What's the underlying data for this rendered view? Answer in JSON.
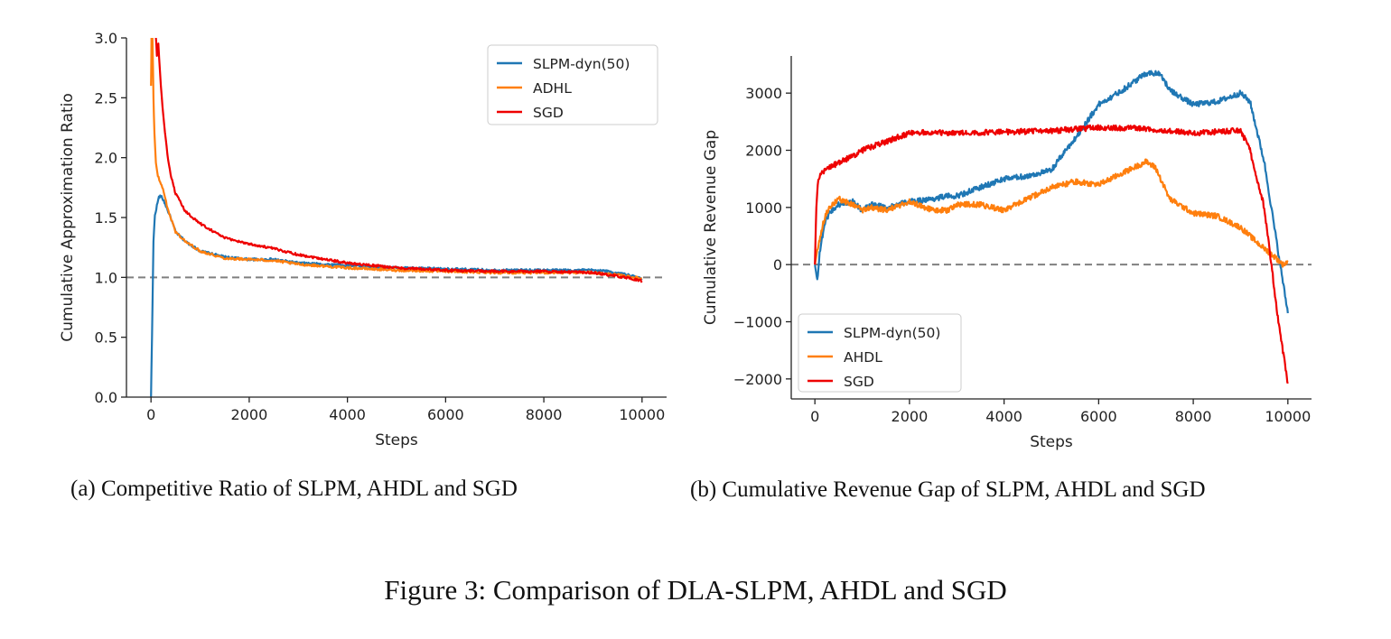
{
  "chart_data": [
    {
      "type": "line",
      "title": "",
      "xlabel": "Steps",
      "ylabel": "Cumulative Approximation Ratio",
      "xlim": [
        -500,
        10500
      ],
      "ylim": [
        0,
        3
      ],
      "xticks": [
        0,
        2000,
        4000,
        6000,
        8000,
        10000
      ],
      "yticks": [
        0.0,
        0.5,
        1.0,
        1.5,
        2.0,
        2.5,
        3.0
      ],
      "ytick_labels": [
        "0.0",
        "0.5",
        "1.0",
        "1.5",
        "2.0",
        "2.5",
        "3.0"
      ],
      "reference_line": 1.0,
      "legend_position": "upper-right",
      "series": [
        {
          "name": "SLPM-dyn(50)",
          "color": "#1f77b4",
          "x": [
            0,
            20,
            50,
            80,
            120,
            160,
            200,
            260,
            320,
            400,
            500,
            700,
            1000,
            1500,
            2000,
            2500,
            3000,
            4000,
            5000,
            6000,
            7000,
            8000,
            9000,
            9300,
            9600,
            9800,
            10000
          ],
          "y": [
            0.0,
            0.5,
            1.3,
            1.52,
            1.6,
            1.67,
            1.68,
            1.64,
            1.58,
            1.5,
            1.38,
            1.3,
            1.22,
            1.17,
            1.15,
            1.15,
            1.12,
            1.1,
            1.08,
            1.07,
            1.06,
            1.06,
            1.06,
            1.05,
            1.03,
            1.01,
            0.99
          ]
        },
        {
          "name": "ADHL",
          "color": "#ff7f0e",
          "x": [
            0,
            10,
            20,
            30,
            50,
            70,
            100,
            140,
            200,
            260,
            320,
            400,
            500,
            700,
            1000,
            1500,
            2000,
            2500,
            3000,
            4000,
            5000,
            6000,
            7000,
            8000,
            9000,
            9500,
            10000
          ],
          "y": [
            2.6,
            3.0,
            2.7,
            3.0,
            2.5,
            2.2,
            1.95,
            1.85,
            1.78,
            1.72,
            1.6,
            1.5,
            1.38,
            1.3,
            1.22,
            1.16,
            1.15,
            1.14,
            1.11,
            1.08,
            1.06,
            1.05,
            1.04,
            1.04,
            1.04,
            1.02,
            0.99
          ]
        },
        {
          "name": "SGD",
          "color": "#ee0000",
          "x": [
            100,
            120,
            150,
            200,
            250,
            300,
            350,
            400,
            500,
            700,
            1000,
            1500,
            2000,
            2500,
            3000,
            4000,
            5000,
            6000,
            7000,
            8000,
            9000,
            9500,
            10000
          ],
          "y": [
            3.0,
            2.85,
            2.95,
            2.6,
            2.35,
            2.15,
            1.98,
            1.85,
            1.7,
            1.55,
            1.45,
            1.33,
            1.28,
            1.24,
            1.19,
            1.12,
            1.08,
            1.06,
            1.05,
            1.05,
            1.04,
            1.01,
            0.97
          ]
        }
      ]
    },
    {
      "type": "line",
      "title": "",
      "xlabel": "Steps",
      "ylabel": "Cumulative Revenue Gap",
      "xlim": [
        -500,
        10500
      ],
      "ylim": [
        -2350,
        3650
      ],
      "xticks": [
        0,
        2000,
        4000,
        6000,
        8000,
        10000
      ],
      "yticks": [
        -2000,
        -1000,
        0,
        1000,
        2000,
        3000
      ],
      "ytick_labels": [
        "−2000",
        "−1000",
        "0",
        "1000",
        "2000",
        "3000"
      ],
      "reference_line": 0,
      "legend_position": "lower-left",
      "series": [
        {
          "name": "SLPM-dyn(50)",
          "color": "#1f77b4",
          "x": [
            0,
            50,
            100,
            200,
            300,
            500,
            800,
            1000,
            1200,
            1500,
            2000,
            2500,
            2800,
            3000,
            3500,
            4000,
            4500,
            5000,
            5300,
            5500,
            6000,
            6500,
            7000,
            7300,
            7500,
            8000,
            8500,
            9000,
            9200,
            9500,
            9800,
            10000
          ],
          "y": [
            0,
            -270,
            200,
            700,
            900,
            1050,
            1100,
            950,
            1050,
            1000,
            1100,
            1150,
            1200,
            1200,
            1350,
            1500,
            1550,
            1650,
            2000,
            2200,
            2800,
            3050,
            3350,
            3350,
            3050,
            2800,
            2850,
            3000,
            2850,
            1800,
            200,
            -850
          ]
        },
        {
          "name": "AHDL",
          "color": "#ff7f0e",
          "x": [
            0,
            50,
            100,
            200,
            300,
            500,
            800,
            1000,
            1200,
            1500,
            2000,
            2500,
            2800,
            3000,
            3500,
            4000,
            4500,
            5000,
            5500,
            6000,
            6500,
            7000,
            7200,
            7500,
            8000,
            8500,
            9000,
            9400,
            9700,
            9900,
            10000
          ],
          "y": [
            0,
            250,
            450,
            800,
            1000,
            1150,
            1050,
            950,
            1000,
            950,
            1100,
            950,
            950,
            1050,
            1050,
            950,
            1150,
            1350,
            1450,
            1400,
            1600,
            1800,
            1700,
            1150,
            900,
            850,
            650,
            350,
            150,
            0,
            50
          ]
        },
        {
          "name": "SGD",
          "color": "#ee0000",
          "x": [
            0,
            30,
            60,
            100,
            200,
            300,
            500,
            800,
            1000,
            1500,
            2000,
            2500,
            3000,
            4000,
            5000,
            6000,
            7000,
            8000,
            9000,
            9200,
            9500,
            9800,
            10000
          ],
          "y": [
            0,
            1000,
            1400,
            1550,
            1650,
            1700,
            1780,
            1900,
            2000,
            2150,
            2300,
            2320,
            2300,
            2320,
            2340,
            2400,
            2380,
            2300,
            2350,
            2000,
            1000,
            -1000,
            -2080
          ]
        }
      ]
    }
  ],
  "captions": {
    "a": "(a) Competitive Ratio of SLPM, AHDL and SGD",
    "b": "(b) Cumulative Revenue Gap of SLPM, AHDL and SGD",
    "figure": "Figure 3: Comparison of DLA-SLPM, AHDL and SGD"
  }
}
